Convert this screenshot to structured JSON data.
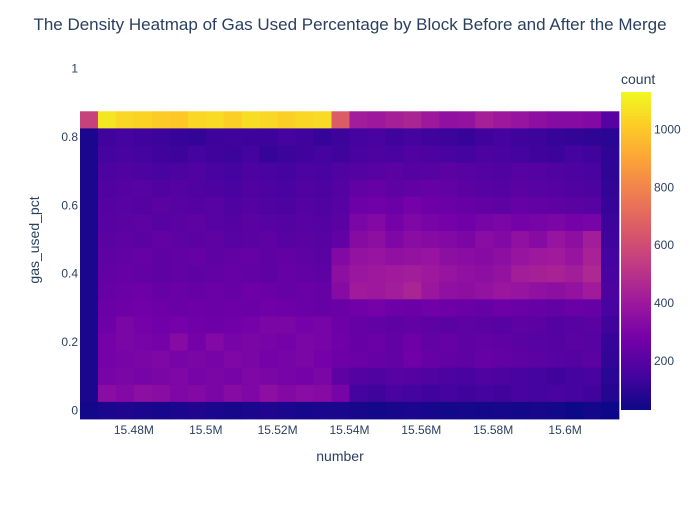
{
  "chart_data": {
    "type": "heatmap",
    "title": "The Density Heatmap of Gas Used Percentage by Block Before and After the Merge",
    "xlabel": "number",
    "ylabel": "gas_used_pct",
    "xlim": [
      15465000,
      15610000
    ],
    "ylim": [
      -0.025,
      1.025
    ],
    "x_ticks": [
      {
        "value": 15480000,
        "label": "15.48M"
      },
      {
        "value": 15500000,
        "label": "15.5M"
      },
      {
        "value": 15520000,
        "label": "15.52M"
      },
      {
        "value": 15540000,
        "label": "15.54M"
      },
      {
        "value": 15560000,
        "label": "15.56M"
      },
      {
        "value": 15580000,
        "label": "15.58M"
      },
      {
        "value": 15600000,
        "label": "15.6M"
      }
    ],
    "y_ticks": [
      {
        "value": 0,
        "label": "0"
      },
      {
        "value": 0.2,
        "label": "0.2"
      },
      {
        "value": 0.4,
        "label": "0.4"
      },
      {
        "value": 0.6,
        "label": "0.6"
      },
      {
        "value": 0.8,
        "label": "0.8"
      },
      {
        "value": 1,
        "label": "1"
      }
    ],
    "x_bin_start": 15465000,
    "x_bin_size": 5000,
    "y_bin_start": -0.025,
    "y_bin_size": 0.05,
    "rows_top_to_bottom": [
      [
        560,
        1080,
        1040,
        1030,
        1010,
        1000,
        1040,
        1050,
        1020,
        1060,
        1040,
        1020,
        1040,
        1050,
        660,
        420,
        400,
        430,
        450,
        400,
        360,
        370,
        430,
        400,
        380,
        350,
        330,
        330,
        320,
        200
      ],
      [
        60,
        140,
        150,
        140,
        130,
        120,
        110,
        130,
        140,
        130,
        130,
        150,
        140,
        120,
        130,
        150,
        160,
        140,
        150,
        140,
        130,
        120,
        140,
        150,
        140,
        130,
        120,
        110,
        100,
        90
      ],
      [
        60,
        150,
        160,
        150,
        140,
        130,
        150,
        140,
        130,
        150,
        120,
        130,
        140,
        150,
        140,
        160,
        170,
        160,
        180,
        170,
        160,
        150,
        170,
        160,
        150,
        140,
        130,
        150,
        140,
        100
      ],
      [
        60,
        170,
        180,
        170,
        160,
        170,
        180,
        160,
        150,
        170,
        160,
        150,
        170,
        160,
        180,
        190,
        200,
        210,
        190,
        200,
        210,
        200,
        190,
        180,
        200,
        190,
        180,
        170,
        160,
        100
      ],
      [
        60,
        180,
        190,
        200,
        180,
        190,
        180,
        170,
        160,
        180,
        170,
        160,
        180,
        170,
        190,
        230,
        240,
        220,
        230,
        240,
        230,
        210,
        200,
        190,
        210,
        200,
        190,
        180,
        170,
        110
      ],
      [
        60,
        190,
        200,
        190,
        210,
        200,
        190,
        200,
        180,
        190,
        180,
        170,
        190,
        180,
        200,
        260,
        270,
        250,
        280,
        260,
        250,
        240,
        230,
        220,
        240,
        230,
        220,
        210,
        200,
        120
      ],
      [
        60,
        200,
        210,
        220,
        200,
        210,
        220,
        200,
        190,
        210,
        200,
        190,
        200,
        190,
        210,
        300,
        320,
        280,
        310,
        290,
        280,
        270,
        290,
        300,
        280,
        290,
        300,
        280,
        290,
        130
      ],
      [
        60,
        210,
        220,
        210,
        230,
        220,
        210,
        220,
        200,
        210,
        220,
        200,
        210,
        200,
        230,
        330,
        350,
        310,
        340,
        330,
        320,
        300,
        340,
        320,
        360,
        330,
        380,
        350,
        420,
        140
      ],
      [
        60,
        220,
        230,
        240,
        220,
        230,
        240,
        220,
        230,
        240,
        220,
        230,
        220,
        210,
        320,
        370,
        380,
        360,
        370,
        380,
        350,
        340,
        330,
        350,
        380,
        400,
        410,
        380,
        440,
        150
      ],
      [
        60,
        230,
        240,
        230,
        220,
        230,
        220,
        230,
        240,
        230,
        220,
        240,
        230,
        220,
        350,
        390,
        400,
        410,
        420,
        400,
        380,
        360,
        350,
        370,
        420,
        430,
        440,
        420,
        460,
        160
      ],
      [
        60,
        240,
        250,
        260,
        240,
        250,
        240,
        250,
        240,
        260,
        250,
        240,
        250,
        240,
        330,
        410,
        400,
        420,
        450,
        390,
        360,
        350,
        370,
        390,
        380,
        360,
        350,
        370,
        410,
        170
      ],
      [
        60,
        250,
        260,
        270,
        260,
        250,
        260,
        250,
        260,
        250,
        270,
        260,
        250,
        240,
        250,
        270,
        280,
        260,
        250,
        270,
        260,
        250,
        240,
        260,
        250,
        240,
        230,
        250,
        240,
        160
      ],
      [
        60,
        260,
        300,
        280,
        270,
        280,
        270,
        260,
        270,
        280,
        300,
        300,
        280,
        290,
        260,
        240,
        230,
        220,
        230,
        220,
        210,
        220,
        210,
        200,
        220,
        210,
        190,
        200,
        210,
        140
      ],
      [
        60,
        280,
        300,
        290,
        280,
        330,
        280,
        320,
        290,
        300,
        290,
        280,
        300,
        290,
        270,
        240,
        250,
        230,
        260,
        230,
        240,
        220,
        230,
        220,
        210,
        200,
        190,
        210,
        200,
        120
      ],
      [
        60,
        280,
        290,
        300,
        310,
        290,
        300,
        290,
        310,
        300,
        280,
        290,
        300,
        280,
        260,
        250,
        240,
        230,
        270,
        240,
        230,
        220,
        240,
        230,
        220,
        210,
        200,
        190,
        210,
        110
      ],
      [
        60,
        290,
        300,
        290,
        300,
        310,
        290,
        300,
        290,
        310,
        300,
        290,
        280,
        300,
        220,
        190,
        180,
        200,
        190,
        180,
        170,
        160,
        180,
        170,
        160,
        150,
        140,
        150,
        160,
        90
      ],
      [
        60,
        340,
        320,
        350,
        340,
        310,
        320,
        300,
        330,
        310,
        350,
        320,
        340,
        330,
        290,
        150,
        140,
        160,
        150,
        140,
        150,
        140,
        150,
        140,
        160,
        150,
        160,
        150,
        140,
        80
      ],
      [
        40,
        60,
        70,
        60,
        50,
        60,
        70,
        60,
        50,
        60,
        70,
        60,
        50,
        60,
        60,
        50,
        40,
        50,
        60,
        50,
        40,
        50,
        40,
        50,
        40,
        50,
        40,
        30,
        40,
        30
      ]
    ],
    "colorbar": {
      "title": "count",
      "zmin": 30,
      "zmax": 1130,
      "ticks": [
        {
          "value": 200,
          "label": "200"
        },
        {
          "value": 400,
          "label": "400"
        },
        {
          "value": 600,
          "label": "600"
        },
        {
          "value": 800,
          "label": "800"
        },
        {
          "value": 1000,
          "label": "1000"
        }
      ],
      "colorscale": [
        "#0d0887",
        "#46039f",
        "#7201a8",
        "#9c179e",
        "#bd3786",
        "#d8576b",
        "#ed7953",
        "#fb9f3a",
        "#fdca26",
        "#f0f921"
      ]
    },
    "grid": true
  }
}
